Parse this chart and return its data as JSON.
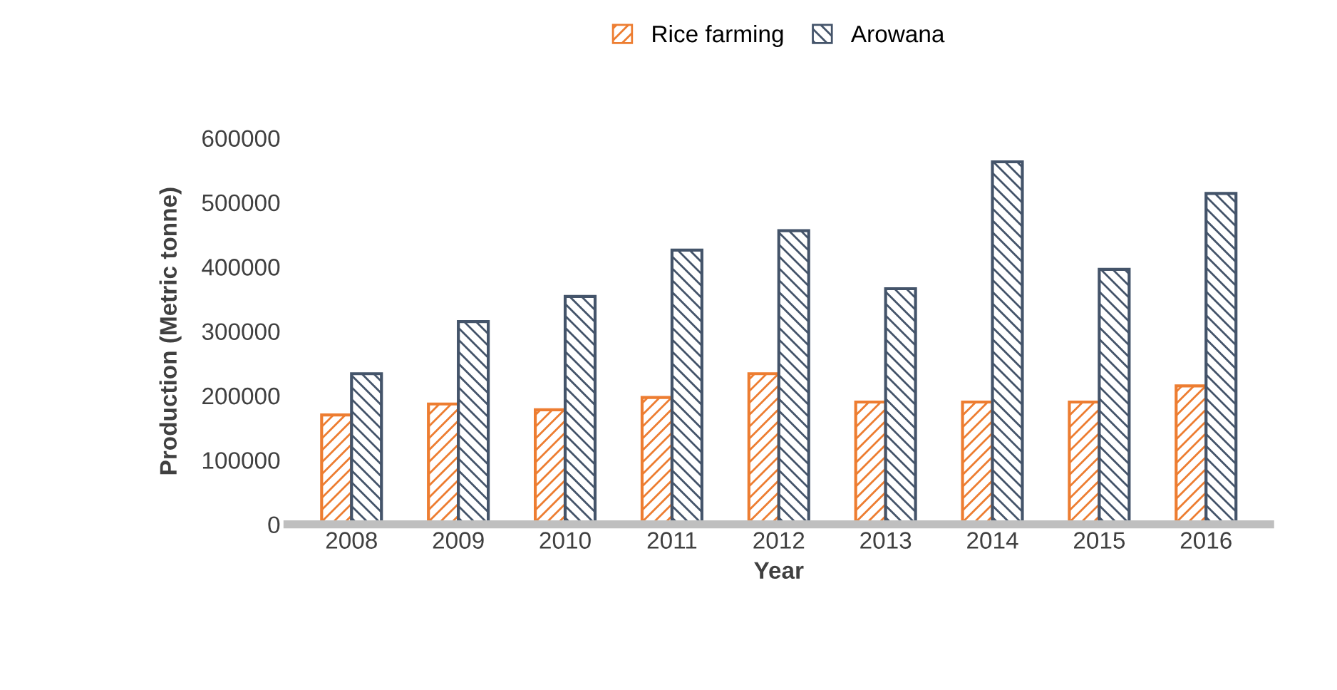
{
  "chart_data": {
    "type": "bar",
    "xlabel": "Year",
    "ylabel": "Production (Metric tonne)",
    "categories": [
      "2008",
      "2009",
      "2010",
      "2011",
      "2012",
      "2013",
      "2014",
      "2015",
      "2016"
    ],
    "series": [
      {
        "name": "Rice farming",
        "color": "#ed7d31",
        "values": [
          170000,
          187000,
          178000,
          197000,
          234000,
          190000,
          190000,
          190000,
          215000
        ]
      },
      {
        "name": "Arowana",
        "color": "#44546a",
        "values": [
          234000,
          315000,
          354000,
          426000,
          456000,
          366000,
          563000,
          396000,
          514000
        ]
      }
    ],
    "ylim": [
      0,
      600000
    ],
    "yticks": [
      0,
      100000,
      200000,
      300000,
      400000,
      500000,
      600000
    ],
    "grid": false,
    "legend": "top"
  }
}
